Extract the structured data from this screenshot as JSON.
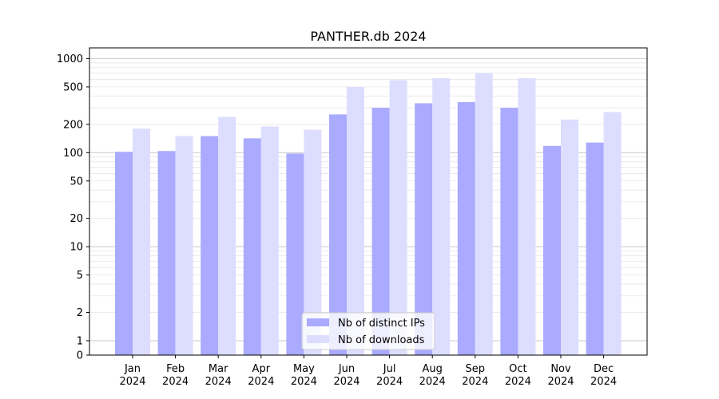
{
  "chart_data": {
    "type": "bar",
    "title": "PANTHER.db 2024",
    "xlabel": "",
    "ylabel": "",
    "y_scale": "symlog",
    "ylim": [
      0,
      1300
    ],
    "y_ticks": [
      0,
      1,
      2,
      5,
      10,
      20,
      50,
      100,
      200,
      500,
      1000
    ],
    "y_tick_labels": [
      "0",
      "1",
      "2",
      "5",
      "10",
      "20",
      "50",
      "100",
      "200",
      "500",
      "1000"
    ],
    "categories": [
      "Jan\n2024",
      "Feb\n2024",
      "Mar\n2024",
      "Apr\n2024",
      "May\n2024",
      "Jun\n2024",
      "Jul\n2024",
      "Aug\n2024",
      "Sep\n2024",
      "Oct\n2024",
      "Nov\n2024",
      "Dec\n2024"
    ],
    "series": [
      {
        "name": "Nb of distinct IPs",
        "color": "#aaaaff",
        "values": [
          102,
          104,
          150,
          142,
          98,
          255,
          300,
          335,
          345,
          300,
          118,
          128
        ]
      },
      {
        "name": "Nb of downloads",
        "color": "#ddddff",
        "values": [
          180,
          150,
          240,
          190,
          175,
          500,
          590,
          620,
          700,
          620,
          225,
          270
        ]
      }
    ],
    "grid": true,
    "legend_position": "bottom-center"
  }
}
